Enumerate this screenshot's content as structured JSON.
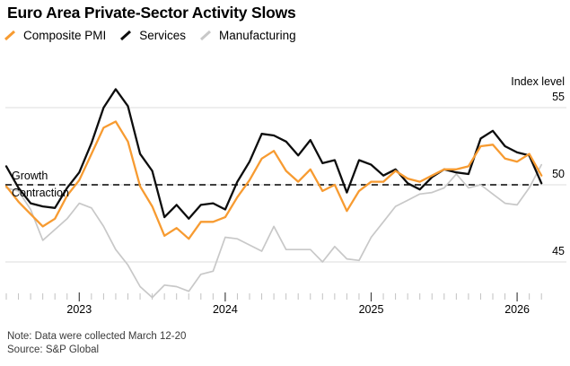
{
  "header": {
    "title": "Euro Area Private-Sector Activity Slows"
  },
  "legend": [
    {
      "label": "Composite PMI",
      "color": "#F79B31"
    },
    {
      "label": "Services",
      "color": "#0D0D0D"
    },
    {
      "label": "Manufacturing",
      "color": "#C8C8C8"
    }
  ],
  "axis": {
    "right_title": "Index level",
    "ytick_labels": [
      "55",
      "50",
      "45"
    ]
  },
  "annotations": {
    "growth": "Growth",
    "contraction": "Contraction"
  },
  "note": {
    "line1": "Note: Data were collected March 12-20",
    "line2": "Source: S&P Global"
  },
  "chart_data": {
    "type": "line",
    "x_unit": "month",
    "x_start": "2022-07",
    "x_end": "2026-03",
    "ylim": [
      42,
      57
    ],
    "yticks": [
      55,
      50,
      45
    ],
    "grid": "horizontal",
    "legend_position": "top-left",
    "baseline": {
      "value": 50,
      "style": "dashed",
      "color": "#000000",
      "label_above": "Growth",
      "label_below": "Contraction"
    },
    "year_tick_month_indices": [
      6,
      18,
      30,
      42
    ],
    "year_labels": [
      "2023",
      "2024",
      "2025",
      "2026"
    ],
    "series": [
      {
        "name": "Composite PMI",
        "color": "#F79B31",
        "width": 2.3,
        "values": [
          49.9,
          48.9,
          48.1,
          47.3,
          47.8,
          49.3,
          50.3,
          52.0,
          53.7,
          54.1,
          52.8,
          49.9,
          48.6,
          46.7,
          47.2,
          46.5,
          47.6,
          47.6,
          47.9,
          49.2,
          50.3,
          51.7,
          52.2,
          50.9,
          50.2,
          51.0,
          49.6,
          50.0,
          48.3,
          49.6,
          50.2,
          50.2,
          50.9,
          50.4,
          50.2,
          50.6,
          51.0,
          51.0,
          51.2,
          52.5,
          52.6,
          51.7,
          51.5,
          52.0,
          50.6
        ]
      },
      {
        "name": "Services",
        "color": "#0D0D0D",
        "width": 2.3,
        "values": [
          51.2,
          49.8,
          48.8,
          48.6,
          48.5,
          49.8,
          50.8,
          52.7,
          55.0,
          56.2,
          55.1,
          52.0,
          50.9,
          47.9,
          48.7,
          47.8,
          48.7,
          48.8,
          48.4,
          50.2,
          51.5,
          53.3,
          53.2,
          52.8,
          51.9,
          52.9,
          51.4,
          51.6,
          49.5,
          51.6,
          51.3,
          50.6,
          51.0,
          50.1,
          49.7,
          50.5,
          51.0,
          50.8,
          50.7,
          53.0,
          53.5,
          52.5,
          52.1,
          51.9,
          50.1
        ]
      },
      {
        "name": "Manufacturing",
        "color": "#C8C8C8",
        "width": 1.7,
        "values": [
          49.8,
          49.6,
          48.4,
          46.4,
          47.1,
          47.8,
          48.8,
          48.5,
          47.3,
          45.8,
          44.8,
          43.4,
          42.7,
          43.5,
          43.4,
          43.1,
          44.2,
          44.4,
          46.6,
          46.5,
          46.1,
          45.7,
          47.3,
          45.8,
          45.8,
          45.8,
          45.0,
          46.0,
          45.2,
          45.1,
          46.6,
          47.6,
          48.6,
          49.0,
          49.4,
          49.5,
          49.8,
          50.7,
          49.8,
          50.0,
          49.4,
          48.8,
          48.7,
          49.8,
          51.3
        ]
      }
    ]
  }
}
